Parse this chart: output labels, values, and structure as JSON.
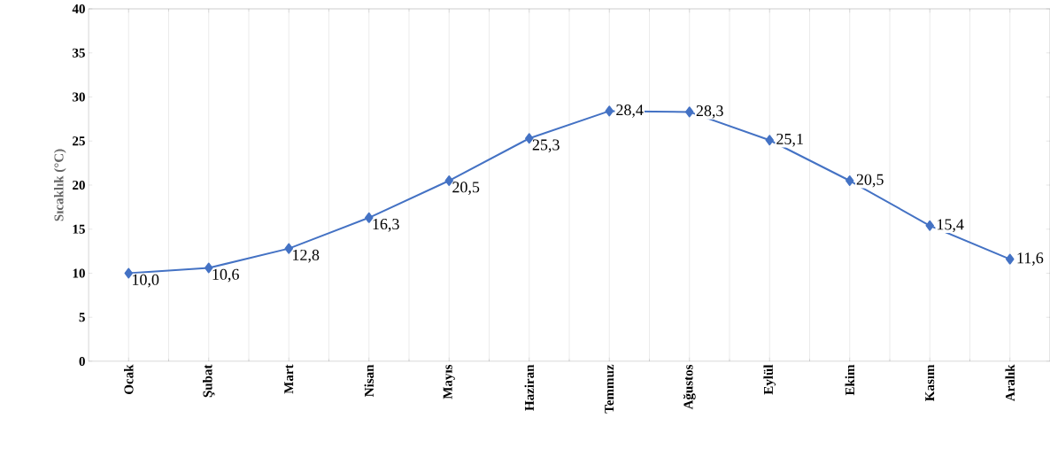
{
  "chart_data": {
    "type": "line",
    "ylabel": "Sıcaklık (°C)",
    "categories": [
      "Ocak",
      "Şubat",
      "Mart",
      "Nisan",
      "Mayıs",
      "Haziran",
      "Temmuz",
      "Ağustos",
      "Eylül",
      "Ekim",
      "Kasım",
      "Aralık"
    ],
    "values": [
      10.0,
      10.6,
      12.8,
      16.3,
      20.5,
      25.3,
      28.4,
      28.3,
      25.1,
      20.5,
      15.4,
      11.6
    ],
    "value_labels": [
      "10,0",
      "10,6",
      "12,8",
      "16,3",
      "20,5",
      "25,3",
      "28,4",
      "28,3",
      "25,1",
      "20,5",
      "15,4",
      "11,6"
    ],
    "color": "#4472c4",
    "marker": "diamond",
    "line_style": "solid",
    "ylim": [
      0,
      40
    ],
    "yticks": [
      0,
      5,
      10,
      15,
      20,
      25,
      30,
      35,
      40
    ],
    "grid": "x"
  }
}
